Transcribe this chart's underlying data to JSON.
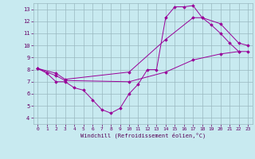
{
  "xlabel": "Windchill (Refroidissement éolien,°C)",
  "background_color": "#c8eaf0",
  "line_color": "#990099",
  "grid_color": "#9ab8c0",
  "xlim": [
    -0.5,
    23.5
  ],
  "ylim": [
    3.5,
    13.5
  ],
  "xticks": [
    0,
    1,
    2,
    3,
    4,
    5,
    6,
    7,
    8,
    9,
    10,
    11,
    12,
    13,
    14,
    15,
    16,
    17,
    18,
    19,
    20,
    21,
    22,
    23
  ],
  "yticks": [
    4,
    5,
    6,
    7,
    8,
    9,
    10,
    11,
    12,
    13
  ],
  "line1_x": [
    0,
    1,
    2,
    3,
    4,
    5,
    6,
    7,
    8,
    9,
    10,
    11,
    12,
    13,
    14,
    15,
    16,
    17,
    18,
    19,
    20,
    21,
    22
  ],
  "line1_y": [
    8.1,
    7.7,
    7.0,
    7.0,
    6.5,
    6.3,
    5.5,
    4.7,
    4.4,
    4.8,
    6.0,
    6.8,
    8.0,
    8.0,
    12.3,
    13.2,
    13.2,
    13.3,
    12.3,
    11.7,
    11.0,
    10.2,
    9.5
  ],
  "line2_x": [
    0,
    2,
    3,
    10,
    14,
    17,
    18,
    20,
    22,
    23
  ],
  "line2_y": [
    8.1,
    7.7,
    7.2,
    7.8,
    10.5,
    12.3,
    12.3,
    11.8,
    10.2,
    10.0
  ],
  "line3_x": [
    0,
    2,
    3,
    10,
    14,
    17,
    20,
    22,
    23
  ],
  "line3_y": [
    8.1,
    7.5,
    7.1,
    7.0,
    7.8,
    8.8,
    9.3,
    9.5,
    9.5
  ]
}
